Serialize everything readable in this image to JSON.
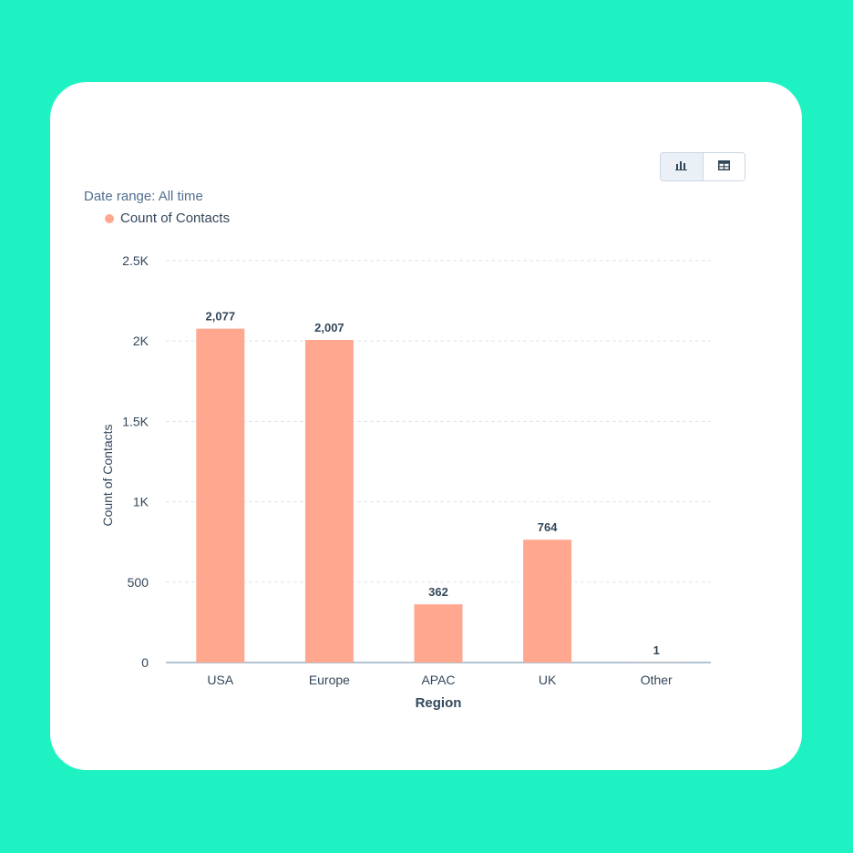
{
  "header": {
    "date_range": "Date range: All time"
  },
  "view_toggle": {
    "chart_icon": "bar-chart-icon",
    "table_icon": "table-icon"
  },
  "colors": {
    "bar": "#ffa78f",
    "background": "#1ef2c3",
    "grid": "#dfe3eb",
    "axis": "#99afc4",
    "text": "#33475b"
  },
  "chart_data": {
    "type": "bar",
    "categories": [
      "USA",
      "Europe",
      "APAC",
      "UK",
      "Other"
    ],
    "series": [
      {
        "name": "Count of Contacts",
        "values": [
          2077,
          2007,
          362,
          764,
          1
        ]
      }
    ],
    "data_labels": [
      "2,077",
      "2,007",
      "362",
      "764",
      "1"
    ],
    "xlabel": "Region",
    "ylabel": "Count of Contacts",
    "ylim": [
      0,
      2500
    ],
    "yticks": [
      0,
      500,
      1000,
      1500,
      2000,
      2500
    ],
    "ytick_labels": [
      "0",
      "500",
      "1K",
      "1.5K",
      "2K",
      "2.5K"
    ],
    "grid": true,
    "legend_position": "top-left"
  }
}
